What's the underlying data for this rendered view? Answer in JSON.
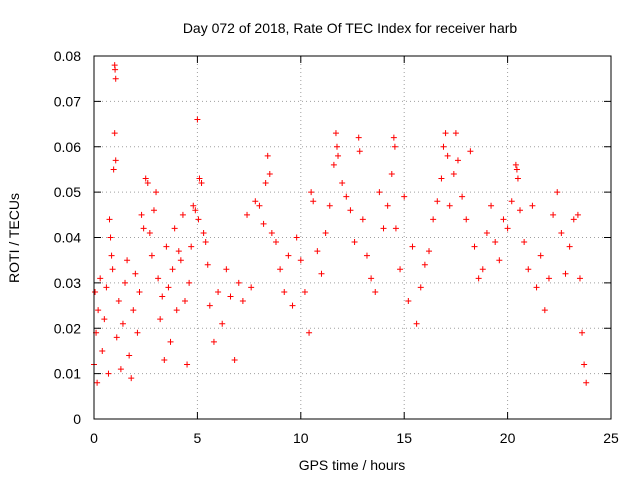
{
  "chart_data": {
    "type": "scatter",
    "title": "Day 072 of 2018, Rate Of TEC Index for receiver harb",
    "xlabel": "GPS time / hours",
    "ylabel": "ROTI / TECUs",
    "xlim": [
      0,
      25
    ],
    "ylim": [
      0,
      0.08
    ],
    "x_ticks": [
      0,
      5,
      10,
      15,
      20,
      25
    ],
    "y_ticks": [
      0,
      0.01,
      0.02,
      0.03,
      0.04,
      0.05,
      0.06,
      0.07,
      0.08
    ],
    "x_tick_labels": [
      "0",
      "5",
      "10",
      "15",
      "20",
      "25"
    ],
    "y_tick_labels": [
      "0",
      "0.01",
      "0.02",
      "0.03",
      "0.04",
      "0.05",
      "0.06",
      "0.07",
      "0.08"
    ],
    "grid": true,
    "marker": "plus",
    "color": "#ff0000",
    "series": [
      {
        "points": [
          [
            0.0,
            0.012
          ],
          [
            0.05,
            0.028
          ],
          [
            0.1,
            0.019
          ],
          [
            0.15,
            0.008
          ],
          [
            0.2,
            0.024
          ],
          [
            0.3,
            0.031
          ],
          [
            0.4,
            0.015
          ],
          [
            0.5,
            0.022
          ],
          [
            0.6,
            0.029
          ],
          [
            0.7,
            0.01
          ],
          [
            0.75,
            0.044
          ],
          [
            0.8,
            0.04
          ],
          [
            0.85,
            0.036
          ],
          [
            0.9,
            0.033
          ],
          [
            0.95,
            0.055
          ],
          [
            1.0,
            0.063
          ],
          [
            1.0,
            0.078
          ],
          [
            1.02,
            0.077
          ],
          [
            1.05,
            0.075
          ],
          [
            1.05,
            0.057
          ],
          [
            1.1,
            0.018
          ],
          [
            1.2,
            0.026
          ],
          [
            1.3,
            0.011
          ],
          [
            1.4,
            0.021
          ],
          [
            1.5,
            0.03
          ],
          [
            1.6,
            0.035
          ],
          [
            1.7,
            0.014
          ],
          [
            1.8,
            0.009
          ],
          [
            1.9,
            0.024
          ],
          [
            2.0,
            0.032
          ],
          [
            2.1,
            0.019
          ],
          [
            2.2,
            0.028
          ],
          [
            2.3,
            0.045
          ],
          [
            2.4,
            0.042
          ],
          [
            2.5,
            0.053
          ],
          [
            2.6,
            0.052
          ],
          [
            2.7,
            0.041
          ],
          [
            2.8,
            0.036
          ],
          [
            2.9,
            0.046
          ],
          [
            3.0,
            0.05
          ],
          [
            3.1,
            0.031
          ],
          [
            3.2,
            0.022
          ],
          [
            3.3,
            0.027
          ],
          [
            3.4,
            0.013
          ],
          [
            3.5,
            0.038
          ],
          [
            3.6,
            0.029
          ],
          [
            3.7,
            0.017
          ],
          [
            3.8,
            0.033
          ],
          [
            3.9,
            0.042
          ],
          [
            4.0,
            0.024
          ],
          [
            4.1,
            0.037
          ],
          [
            4.2,
            0.035
          ],
          [
            4.3,
            0.045
          ],
          [
            4.4,
            0.026
          ],
          [
            4.5,
            0.012
          ],
          [
            4.6,
            0.03
          ],
          [
            4.7,
            0.038
          ],
          [
            4.8,
            0.047
          ],
          [
            4.9,
            0.046
          ],
          [
            5.0,
            0.066
          ],
          [
            5.05,
            0.044
          ],
          [
            5.1,
            0.053
          ],
          [
            5.2,
            0.052
          ],
          [
            5.3,
            0.041
          ],
          [
            5.4,
            0.039
          ],
          [
            5.5,
            0.034
          ],
          [
            5.6,
            0.025
          ],
          [
            5.8,
            0.017
          ],
          [
            6.0,
            0.028
          ],
          [
            6.2,
            0.021
          ],
          [
            6.4,
            0.033
          ],
          [
            6.6,
            0.027
          ],
          [
            6.8,
            0.013
          ],
          [
            7.0,
            0.03
          ],
          [
            7.2,
            0.026
          ],
          [
            7.4,
            0.045
          ],
          [
            7.6,
            0.029
          ],
          [
            7.8,
            0.048
          ],
          [
            8.0,
            0.047
          ],
          [
            8.2,
            0.043
          ],
          [
            8.3,
            0.052
          ],
          [
            8.4,
            0.058
          ],
          [
            8.5,
            0.054
          ],
          [
            8.6,
            0.041
          ],
          [
            8.8,
            0.039
          ],
          [
            9.0,
            0.033
          ],
          [
            9.2,
            0.028
          ],
          [
            9.4,
            0.036
          ],
          [
            9.6,
            0.025
          ],
          [
            9.8,
            0.04
          ],
          [
            10.0,
            0.035
          ],
          [
            10.2,
            0.028
          ],
          [
            10.4,
            0.019
          ],
          [
            10.5,
            0.05
          ],
          [
            10.6,
            0.048
          ],
          [
            10.8,
            0.037
          ],
          [
            11.0,
            0.032
          ],
          [
            11.2,
            0.041
          ],
          [
            11.4,
            0.047
          ],
          [
            11.6,
            0.056
          ],
          [
            11.7,
            0.063
          ],
          [
            11.75,
            0.06
          ],
          [
            11.8,
            0.058
          ],
          [
            12.0,
            0.052
          ],
          [
            12.2,
            0.049
          ],
          [
            12.4,
            0.046
          ],
          [
            12.6,
            0.039
          ],
          [
            12.8,
            0.062
          ],
          [
            12.85,
            0.059
          ],
          [
            13.0,
            0.044
          ],
          [
            13.2,
            0.036
          ],
          [
            13.4,
            0.031
          ],
          [
            13.6,
            0.028
          ],
          [
            13.8,
            0.05
          ],
          [
            14.0,
            0.042
          ],
          [
            14.2,
            0.047
          ],
          [
            14.4,
            0.054
          ],
          [
            14.5,
            0.062
          ],
          [
            14.55,
            0.06
          ],
          [
            14.6,
            0.042
          ],
          [
            14.8,
            0.033
          ],
          [
            15.0,
            0.049
          ],
          [
            15.2,
            0.026
          ],
          [
            15.4,
            0.038
          ],
          [
            15.6,
            0.021
          ],
          [
            15.8,
            0.029
          ],
          [
            16.0,
            0.034
          ],
          [
            16.2,
            0.037
          ],
          [
            16.4,
            0.044
          ],
          [
            16.6,
            0.048
          ],
          [
            16.8,
            0.053
          ],
          [
            16.9,
            0.06
          ],
          [
            17.0,
            0.063
          ],
          [
            17.1,
            0.058
          ],
          [
            17.2,
            0.047
          ],
          [
            17.4,
            0.054
          ],
          [
            17.5,
            0.063
          ],
          [
            17.6,
            0.057
          ],
          [
            17.8,
            0.049
          ],
          [
            18.0,
            0.044
          ],
          [
            18.2,
            0.059
          ],
          [
            18.4,
            0.038
          ],
          [
            18.6,
            0.031
          ],
          [
            18.8,
            0.033
          ],
          [
            19.0,
            0.041
          ],
          [
            19.2,
            0.047
          ],
          [
            19.4,
            0.039
          ],
          [
            19.6,
            0.035
          ],
          [
            19.8,
            0.044
          ],
          [
            20.0,
            0.042
          ],
          [
            20.2,
            0.048
          ],
          [
            20.4,
            0.056
          ],
          [
            20.45,
            0.055
          ],
          [
            20.5,
            0.053
          ],
          [
            20.6,
            0.046
          ],
          [
            20.8,
            0.039
          ],
          [
            21.0,
            0.033
          ],
          [
            21.2,
            0.047
          ],
          [
            21.4,
            0.029
          ],
          [
            21.6,
            0.036
          ],
          [
            21.8,
            0.024
          ],
          [
            22.0,
            0.031
          ],
          [
            22.2,
            0.045
          ],
          [
            22.4,
            0.05
          ],
          [
            22.6,
            0.041
          ],
          [
            22.8,
            0.032
          ],
          [
            23.0,
            0.038
          ],
          [
            23.2,
            0.044
          ],
          [
            23.4,
            0.045
          ],
          [
            23.5,
            0.031
          ],
          [
            23.6,
            0.019
          ],
          [
            23.7,
            0.012
          ],
          [
            23.8,
            0.008
          ]
        ]
      }
    ]
  }
}
